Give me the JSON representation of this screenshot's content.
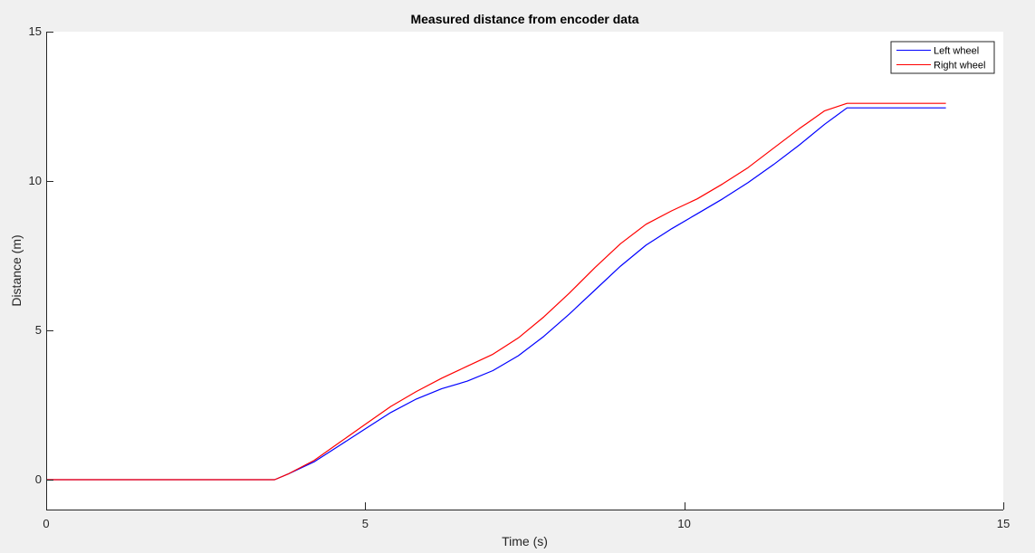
{
  "colors": {
    "figure_background": "#f0f0f0",
    "axes_background": "#ffffff",
    "axis_color": "#262626",
    "left_wheel": "#0000ff",
    "right_wheel": "#ff0000"
  },
  "chart_data": {
    "type": "line",
    "title": "Measured distance from encoder data",
    "xlabel": "Time (s)",
    "ylabel": "Distance (m)",
    "xlim": [
      0,
      15
    ],
    "ylim": [
      -1,
      15
    ],
    "xticks": [
      0,
      5,
      10,
      15
    ],
    "yticks": [
      0,
      5,
      10,
      15
    ],
    "xtick_labels": [
      "0",
      "5",
      "10",
      "15"
    ],
    "ytick_labels": [
      "0",
      "5",
      "10",
      "15"
    ],
    "grid": false,
    "legend_position": "top-right",
    "series": [
      {
        "name": "Left wheel",
        "color": "#0000ff",
        "x": [
          0,
          3.58,
          3.8,
          4.2,
          4.6,
          5.0,
          5.4,
          5.8,
          6.2,
          6.6,
          7.0,
          7.4,
          7.8,
          8.2,
          8.6,
          9.0,
          9.4,
          9.8,
          10.2,
          10.6,
          11.0,
          11.4,
          11.8,
          12.2,
          12.55,
          14.1
        ],
        "y": [
          0,
          0,
          0.2,
          0.6,
          1.15,
          1.7,
          2.25,
          2.7,
          3.05,
          3.3,
          3.65,
          4.15,
          4.8,
          5.55,
          6.35,
          7.15,
          7.85,
          8.4,
          8.9,
          9.4,
          9.95,
          10.55,
          11.2,
          11.9,
          12.45,
          12.45
        ]
      },
      {
        "name": "Right wheel",
        "color": "#ff0000",
        "x": [
          0,
          3.58,
          3.8,
          4.2,
          4.6,
          5.0,
          5.4,
          5.8,
          6.2,
          6.6,
          7.0,
          7.4,
          7.8,
          8.2,
          8.6,
          9.0,
          9.4,
          9.8,
          10.2,
          10.6,
          11.0,
          11.4,
          11.8,
          12.2,
          12.55,
          14.1
        ],
        "y": [
          0,
          0,
          0.2,
          0.65,
          1.25,
          1.85,
          2.45,
          2.95,
          3.4,
          3.8,
          4.2,
          4.75,
          5.45,
          6.25,
          7.1,
          7.9,
          8.55,
          9.0,
          9.4,
          9.9,
          10.45,
          11.1,
          11.75,
          12.35,
          12.6,
          12.6
        ]
      }
    ]
  }
}
